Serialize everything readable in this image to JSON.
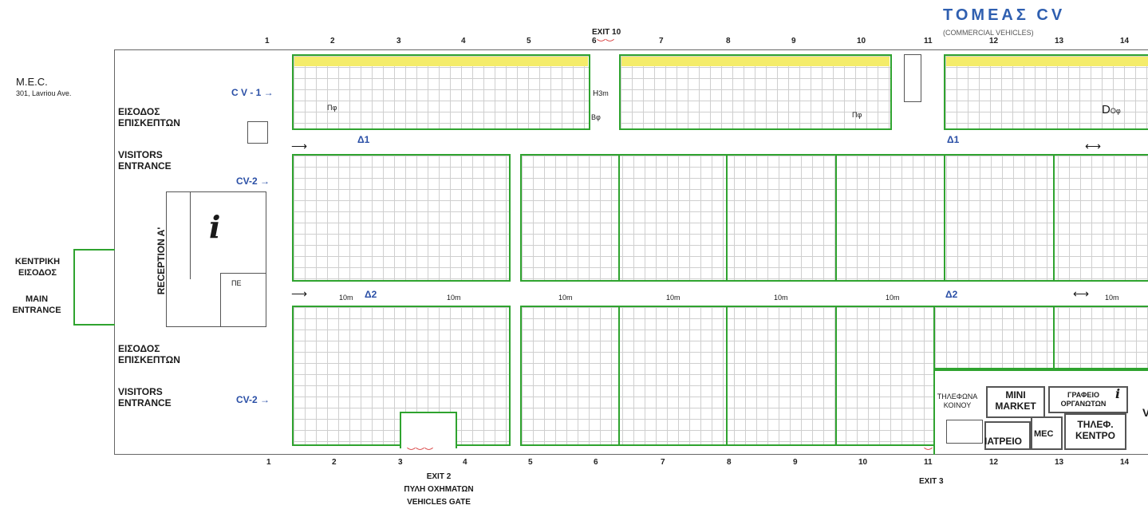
{
  "header": {
    "title": "ΤΟΜΕΑΣ CV",
    "subtitle": "(COMMERCIAL VEHICLES)"
  },
  "venue": {
    "name": "M.E.C.",
    "address": "301, Lavriou Ave."
  },
  "left": {
    "visitors_gr_top_1": "ΕΙΣΟΔΟΣ",
    "visitors_gr_top_2": "ΕΠΙΣΚΕΠΤΩΝ",
    "visitors_en_top_1": "VISITORS",
    "visitors_en_top_2": "ENTRANCE",
    "main_gr_1": "ΚΕΝΤΡΙΚΗ",
    "main_gr_2": "ΕΙΣΟΔΟΣ",
    "main_en_1": "MAIN",
    "main_en_2": "ENTRANCE",
    "visitors_gr_bot_1": "ΕΙΣΟΔΟΣ",
    "visitors_gr_bot_2": "ΕΠΙΣΚΕΠΤΩΝ",
    "visitors_en_bot_1": "VISITORS",
    "visitors_en_bot_2": "ENTRANCE",
    "reception": "RECEPTION A'",
    "info_symbol": "i",
    "pe_label": "ΠΕ"
  },
  "zones": {
    "cv1": "C V - 1 →",
    "cv2_top": "CV-2 →",
    "cv2_bottom": "CV-2 →"
  },
  "corridors": {
    "d1_left": "Δ1",
    "d1_right": "Δ1",
    "d2_left": "Δ2",
    "d2_right": "Δ2",
    "width_labels": [
      "10m",
      "10m",
      "10m",
      "10m",
      "10m",
      "10m",
      "10m"
    ]
  },
  "columns_top": [
    "1",
    "2",
    "3",
    "4",
    "5",
    "6",
    "7",
    "8",
    "9",
    "10",
    "11",
    "12",
    "13",
    "14"
  ],
  "columns_bottom": [
    "1",
    "2",
    "3",
    "4",
    "5",
    "6",
    "7",
    "8",
    "9",
    "10",
    "11",
    "12",
    "13",
    "14"
  ],
  "hall_marks": {
    "pf_1": "Πφ",
    "pf_2": "Πφ",
    "h_mark": "Η",
    "h_small": "3m",
    "d_mark": "D",
    "d_small": "Οφ",
    "b_mark": "Βφ"
  },
  "exits": {
    "exit10": "EXIT 10",
    "exit2_1": "EXIT 2",
    "exit2_2": "ΠΥΛΗ ΟΧΗΜΑΤΩΝ",
    "exit2_3": "VEHICLES GATE",
    "exit3": "EXIT 3"
  },
  "services": {
    "phones_1": "ΤΗΛΕΦΩΝΑ",
    "phones_2": "ΚΟΙΝΟΥ",
    "minimarket_1": "MINI",
    "minimarket_2": "MARKET",
    "office_1": "ΓΡΑΦΕΙΟ",
    "office_2": "ΟΡΓΑΝΩΤΩΝ",
    "office_symbol": "i",
    "iatreio": "ΙΑΤΡΕΙΟ",
    "mec": "MEC",
    "tel_center_1": "ΤΗΛΕΦ.",
    "tel_center_2": "ΚΕΝΤΡΟ",
    "w_cut": "V"
  },
  "colors": {
    "hall_border": "#2fa32f",
    "grid": "#cfcfcf",
    "stripe": "#f4ec6a",
    "accent_blue": "#2a4fa6",
    "exit_red": "#d42a2a"
  }
}
